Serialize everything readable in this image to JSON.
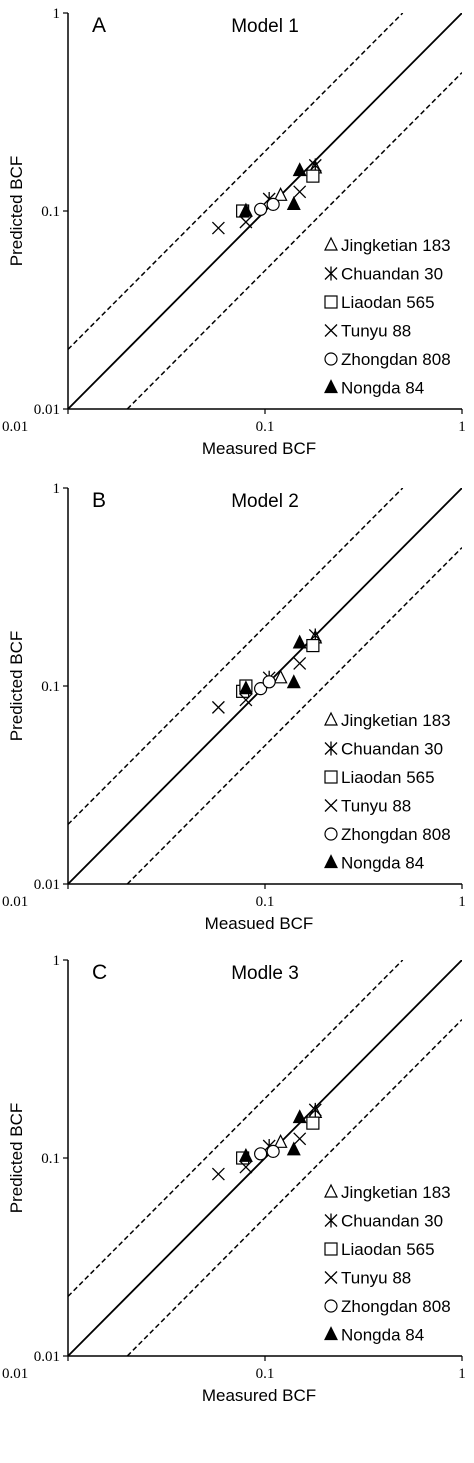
{
  "chart_data": [
    {
      "type": "scatter",
      "panel": "A",
      "title": "Model 1",
      "xlabel": "Measured BCF",
      "ylabel": "Predicted BCF",
      "xscale": "log",
      "yscale": "log",
      "xlim": [
        0.01,
        1
      ],
      "ylim": [
        0.01,
        1
      ],
      "xticks": [
        "0.01",
        "0.1",
        "1"
      ],
      "yticks": [
        "0.01",
        "0.1",
        "1"
      ],
      "grid": false,
      "legend_position": "right",
      "reference_lines": [
        "y = x (solid)",
        "y = 2x (dashed)",
        "y = 0.5x (dashed)"
      ],
      "series": [
        {
          "name": "Jingketian 183",
          "marker": "triangle-open",
          "points": [
            [
              0.12,
              0.12
            ],
            [
              0.18,
              0.165
            ]
          ]
        },
        {
          "name": "Chuandan 30",
          "marker": "asterisk",
          "points": [
            [
              0.105,
              0.115
            ],
            [
              0.18,
              0.17
            ]
          ]
        },
        {
          "name": "Liaodan 565",
          "marker": "square-open",
          "points": [
            [
              0.077,
              0.1
            ],
            [
              0.175,
              0.15
            ]
          ]
        },
        {
          "name": "Tunyu 88",
          "marker": "x",
          "points": [
            [
              0.058,
              0.082
            ],
            [
              0.08,
              0.088
            ],
            [
              0.15,
              0.125
            ]
          ]
        },
        {
          "name": "Zhongdan 808",
          "marker": "circle-open",
          "points": [
            [
              0.095,
              0.102
            ],
            [
              0.11,
              0.108
            ]
          ]
        },
        {
          "name": "Nongda 84",
          "marker": "triangle-filled",
          "points": [
            [
              0.08,
              0.1
            ],
            [
              0.14,
              0.108
            ],
            [
              0.15,
              0.16
            ]
          ]
        }
      ]
    },
    {
      "type": "scatter",
      "panel": "B",
      "title": "Model 2",
      "xlabel": "Measued BCF",
      "ylabel": "Predicted BCF",
      "xscale": "log",
      "yscale": "log",
      "xlim": [
        0.01,
        1
      ],
      "ylim": [
        0.01,
        1
      ],
      "xticks": [
        "0.01",
        "0.1",
        "1"
      ],
      "yticks": [
        "0.01",
        "0.1",
        "1"
      ],
      "grid": false,
      "legend_position": "right",
      "reference_lines": [
        "y = x (solid)",
        "y = 2x (dashed)",
        "y = 0.5x (dashed)"
      ],
      "series": [
        {
          "name": "Jingketian 183",
          "marker": "triangle-open",
          "points": [
            [
              0.12,
              0.11
            ],
            [
              0.18,
              0.175
            ]
          ]
        },
        {
          "name": "Chuandan 30",
          "marker": "asterisk",
          "points": [
            [
              0.105,
              0.11
            ],
            [
              0.18,
              0.18
            ]
          ]
        },
        {
          "name": "Liaodan 565",
          "marker": "square-open",
          "points": [
            [
              0.077,
              0.094
            ],
            [
              0.08,
              0.1
            ],
            [
              0.175,
              0.16
            ]
          ]
        },
        {
          "name": "Tunyu 88",
          "marker": "x",
          "points": [
            [
              0.058,
              0.078
            ],
            [
              0.08,
              0.085
            ],
            [
              0.15,
              0.13
            ]
          ]
        },
        {
          "name": "Zhongdan 808",
          "marker": "circle-open",
          "points": [
            [
              0.095,
              0.097
            ],
            [
              0.105,
              0.105
            ]
          ]
        },
        {
          "name": "Nongda 84",
          "marker": "triangle-filled",
          "points": [
            [
              0.08,
              0.097
            ],
            [
              0.14,
              0.104
            ],
            [
              0.15,
              0.165
            ]
          ]
        }
      ]
    },
    {
      "type": "scatter",
      "panel": "C",
      "title": "Modle 3",
      "xlabel": "Measured BCF",
      "ylabel": "Predicted BCF",
      "xscale": "log",
      "yscale": "log",
      "xlim": [
        0.01,
        1
      ],
      "ylim": [
        0.01,
        1
      ],
      "xticks": [
        "0.01",
        "0.1",
        "1"
      ],
      "yticks": [
        "0.01",
        "0.1",
        "1"
      ],
      "grid": false,
      "legend_position": "right",
      "reference_lines": [
        "y = x (solid)",
        "y = 2x (dashed)",
        "y = 0.5x (dashed)"
      ],
      "series": [
        {
          "name": "Jingketian 183",
          "marker": "triangle-open",
          "points": [
            [
              0.12,
              0.12
            ],
            [
              0.18,
              0.17
            ]
          ]
        },
        {
          "name": "Chuandan 30",
          "marker": "asterisk",
          "points": [
            [
              0.105,
              0.115
            ],
            [
              0.18,
              0.175
            ]
          ]
        },
        {
          "name": "Liaodan 565",
          "marker": "square-open",
          "points": [
            [
              0.077,
              0.1
            ],
            [
              0.175,
              0.15
            ]
          ]
        },
        {
          "name": "Tunyu 88",
          "marker": "x",
          "points": [
            [
              0.058,
              0.083
            ],
            [
              0.08,
              0.09
            ],
            [
              0.15,
              0.125
            ]
          ]
        },
        {
          "name": "Zhongdan 808",
          "marker": "circle-open",
          "points": [
            [
              0.095,
              0.105
            ],
            [
              0.11,
              0.108
            ]
          ]
        },
        {
          "name": "Nongda 84",
          "marker": "triangle-filled",
          "points": [
            [
              0.08,
              0.102
            ],
            [
              0.14,
              0.11
            ],
            [
              0.15,
              0.16
            ]
          ]
        }
      ]
    }
  ]
}
